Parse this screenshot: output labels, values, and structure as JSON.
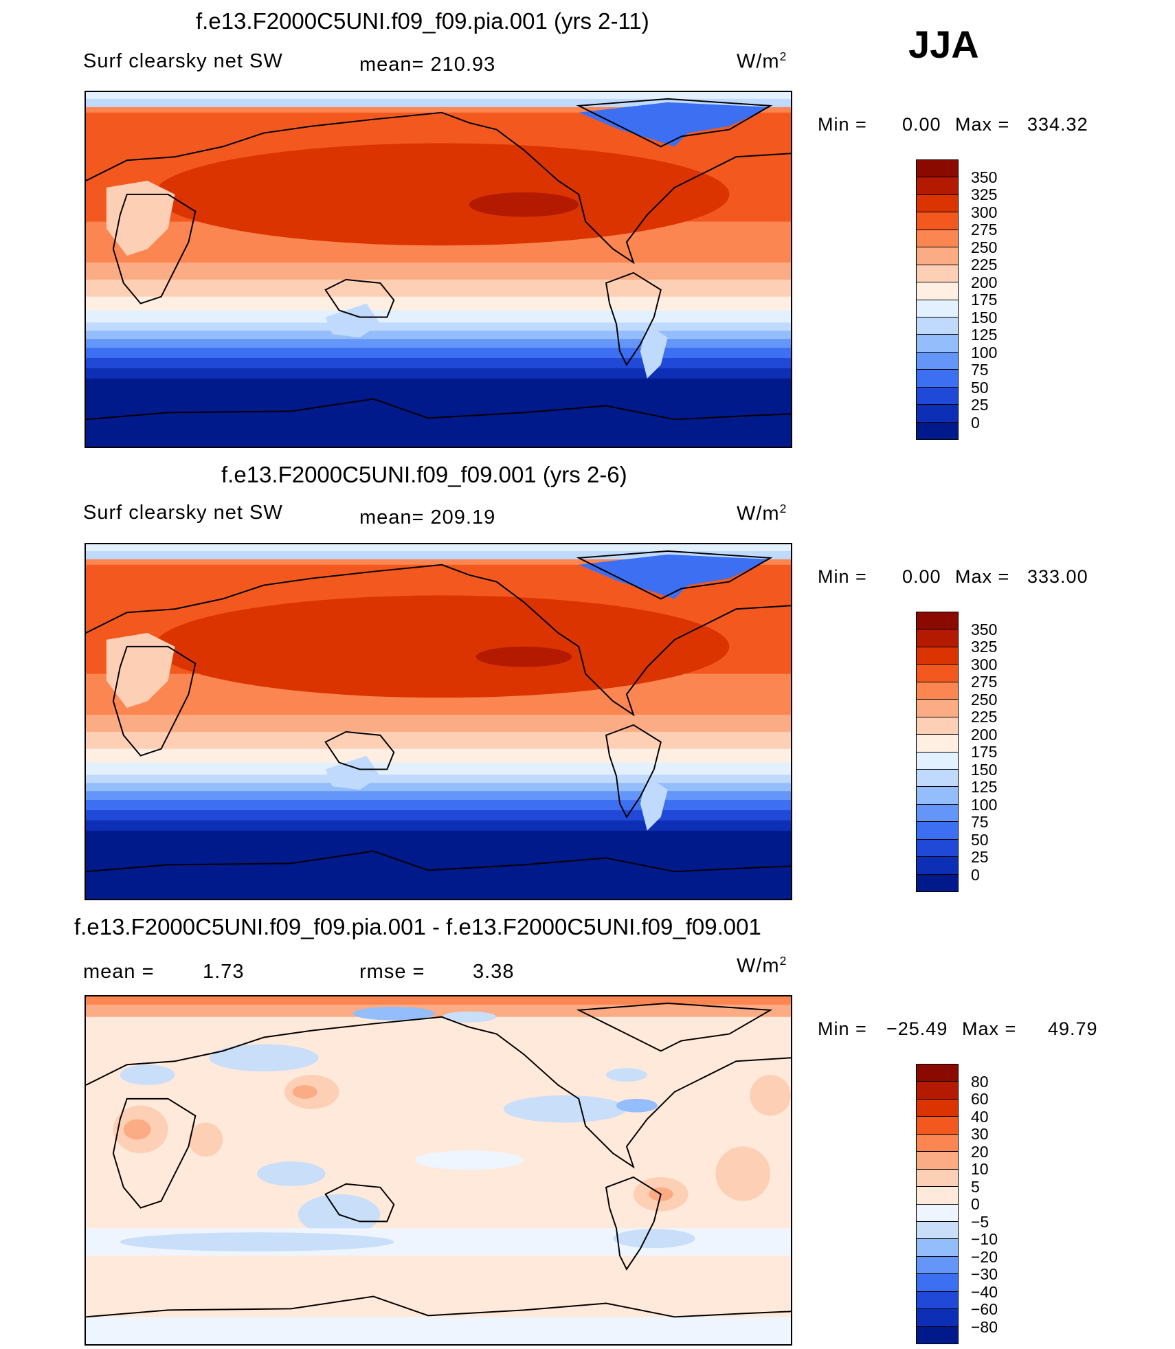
{
  "season": "JJA",
  "unit_base": "W/m",
  "unit_exp": "2",
  "panels": [
    {
      "title": "f.e13.F2000C5UNI.f09_f09.pia.001 (yrs 2-11)",
      "variable": "Surf clearsky net SW",
      "mean_text": "mean= 210.93",
      "min_label": "Min =",
      "min_value": "0.00",
      "max_label": "Max =",
      "max_value": "334.32",
      "colorbar_labels": [
        "350",
        "325",
        "300",
        "275",
        "250",
        "225",
        "200",
        "175",
        "150",
        "125",
        "100",
        "75",
        "50",
        "25",
        "0"
      ]
    },
    {
      "title": "f.e13.F2000C5UNI.f09_f09.001 (yrs 2-6)",
      "variable": "Surf clearsky net SW",
      "mean_text": "mean= 209.19",
      "min_label": "Min =",
      "min_value": "0.00",
      "max_label": "Max =",
      "max_value": "333.00",
      "colorbar_labels": [
        "350",
        "325",
        "300",
        "275",
        "250",
        "225",
        "200",
        "175",
        "150",
        "125",
        "100",
        "75",
        "50",
        "25",
        "0"
      ]
    },
    {
      "title": "f.e13.F2000C5UNI.f09_f09.pia.001 - f.e13.F2000C5UNI.f09_f09.001",
      "mean_label": "mean =",
      "mean_value": "1.73",
      "rmse_label": "rmse =",
      "rmse_value": "3.38",
      "min_label": "Min =",
      "min_value": "−25.49",
      "max_label": "Max =",
      "max_value": "49.79",
      "colorbar_labels": [
        "80",
        "60",
        "40",
        "30",
        "20",
        "10",
        "5",
        "0",
        "−5",
        "−10",
        "−20",
        "−30",
        "−40",
        "−60",
        "−80"
      ]
    }
  ],
  "colors": {
    "abs_scale": [
      "#8b0a00",
      "#b31a00",
      "#db3400",
      "#f3591e",
      "#fb8651",
      "#fcac84",
      "#fdd0b6",
      "#ffefe3",
      "#e3f0fd",
      "#c0dafd",
      "#94bdfb",
      "#6496fa",
      "#3c6ff2",
      "#2149d8",
      "#0c2fb6",
      "#001a8c"
    ],
    "diff_scale": [
      "#8b0a00",
      "#b31a00",
      "#db3400",
      "#f3591e",
      "#fb8651",
      "#fcac84",
      "#fdd0b6",
      "#ffe9da",
      "#eef5fe",
      "#c9def9",
      "#94bdfb",
      "#6496fa",
      "#3c6ff2",
      "#2149d8",
      "#0c2fb6",
      "#001a8c"
    ]
  }
}
